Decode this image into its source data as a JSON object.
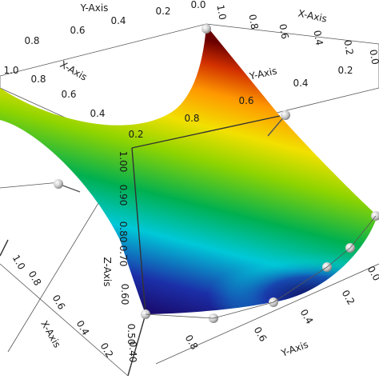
{
  "chart_data": {
    "type": "surface-3d",
    "title": "",
    "axes": {
      "x": {
        "label": "X-Axis",
        "ticks": [
          "1.0",
          "0.8",
          "0.6",
          "0.4",
          "0.2",
          "0.0"
        ]
      },
      "y": {
        "label": "Y-Axis",
        "ticks": [
          "0.0",
          "0.2",
          "0.4",
          "0.6",
          "0.8",
          "1.0"
        ]
      },
      "z": {
        "label": "Z-Axis",
        "ticks": [
          "1.00",
          "0.90",
          "0.80",
          "0.70",
          "0.60",
          "0.50",
          "0.40"
        ],
        "range": [
          0.4,
          1.0
        ]
      }
    },
    "top_box_labels": {
      "y_ticks": [
        "0.8",
        "0.6",
        "0.4",
        "0.2",
        "0.0"
      ],
      "x_ticks": [
        "1.0",
        "0.8",
        "0.6",
        "0.4",
        "0.2",
        "0.0"
      ]
    },
    "colormap": [
      "#1a0a6b",
      "#1b2fa8",
      "#00c8d8",
      "#00b050",
      "#8fd400",
      "#f2e000",
      "#ff9800",
      "#d13000",
      "#6b0000"
    ],
    "surface_description_values": {
      "corner_high_x0_y1": 1.0,
      "corner_high_x1_y0": 1.0,
      "saddle_min": 0.45
    },
    "control_points": 9,
    "grid": true
  }
}
